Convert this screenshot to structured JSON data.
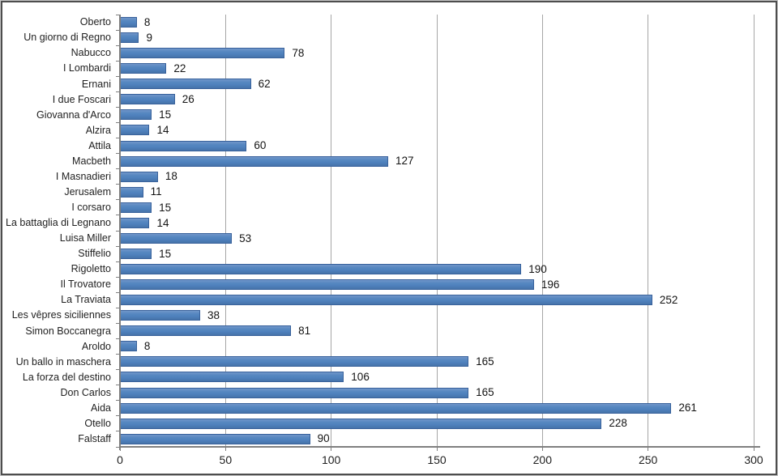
{
  "chart_data": {
    "type": "bar",
    "orientation": "horizontal",
    "title": "",
    "xlabel": "",
    "ylabel": "",
    "categories": [
      "Oberto",
      "Un giorno di Regno",
      "Nabucco",
      "I Lombardi",
      "Ernani",
      "I due Foscari",
      "Giovanna d'Arco",
      "Alzira",
      "Attila",
      "Macbeth",
      "I Masnadieri",
      "Jerusalem",
      "I corsaro",
      "La battaglia di Legnano",
      "Luisa Miller",
      "Stiffelio",
      "Rigoletto",
      "Il Trovatore",
      "La Traviata",
      "Les vêpres siciliennes",
      "Simon Boccanegra",
      "Aroldo",
      "Un ballo in maschera",
      "La forza del destino",
      "Don Carlos",
      "Aida",
      "Otello",
      "Falstaff"
    ],
    "values": [
      8,
      9,
      78,
      22,
      62,
      26,
      15,
      14,
      60,
      127,
      18,
      11,
      15,
      14,
      53,
      15,
      190,
      196,
      252,
      38,
      81,
      8,
      165,
      106,
      165,
      261,
      228,
      90
    ],
    "data_labels_shown": true,
    "xlim": [
      0,
      300
    ],
    "xticks": [
      0,
      50,
      100,
      150,
      200,
      250,
      300
    ],
    "grid": "vertical",
    "legend": "none",
    "colors": {
      "bar_fill": "#4f81bd",
      "bar_border": "#38619b",
      "gridline": "#a6a6a6",
      "axis": "#7f7f7f",
      "text": "#1f1f1f",
      "background": "#ffffff",
      "frame_border": "#4e4e4e"
    }
  }
}
